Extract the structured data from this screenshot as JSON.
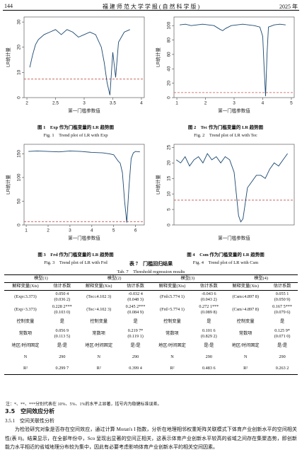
{
  "header": {
    "page": "144",
    "journal": "福 建 师 范 大 学 学 报 ( 自 然 科 学 版 )",
    "year": "2025 年"
  },
  "chart_data": [
    {
      "type": "line",
      "caption": "图 1　Exp 作为门槛变量的 LR 趋势图",
      "caption_en": "Fig. 1　Trend plot of LR with Exp",
      "x_label": "第一门槛参数值",
      "y_label": "LR统计量",
      "x": [
        2.05,
        2.1,
        2.15,
        2.2,
        2.3,
        2.4,
        2.5,
        2.6,
        2.7,
        2.8,
        2.9,
        3.0,
        3.1,
        3.2,
        3.3,
        3.35,
        3.4,
        3.45,
        3.5,
        3.55,
        3.6,
        3.7,
        3.8
      ],
      "series": [
        {
          "color": "#1a476f",
          "values": [
            12,
            17,
            21,
            23,
            25,
            26,
            27,
            25,
            27,
            26,
            24,
            25,
            26,
            25,
            20,
            14,
            6,
            1,
            18,
            8,
            22,
            26,
            27
          ]
        }
      ],
      "threshold": {
        "value": 7.35,
        "color": "#c0504d"
      },
      "xlim": [
        1.95,
        4.05
      ],
      "xticks": [
        2,
        2.5,
        3,
        3.5,
        4
      ],
      "ylim": [
        0,
        32
      ],
      "yticks": [
        0,
        10,
        20,
        30
      ]
    },
    {
      "type": "line",
      "caption": "图 2　Tec 作为门槛变量的 LR 趋势图",
      "caption_en": "Fig. 2　Trend plot of LR with Tec",
      "x_label": "第一门槛参数值",
      "y_label": "LR统计量",
      "x": [
        1.1,
        1.3,
        1.5,
        1.7,
        1.9,
        2.1,
        2.3,
        2.5,
        2.6,
        2.7,
        2.9,
        3.1,
        3.3,
        3.5,
        3.7,
        3.9,
        4.0,
        4.05,
        4.1,
        4.15,
        4.2,
        4.4,
        4.6,
        4.8
      ],
      "series": [
        {
          "color": "#1a476f",
          "values": [
            101,
            102,
            100,
            101,
            102,
            101,
            100,
            95,
            93,
            96,
            100,
            101,
            102,
            101,
            100,
            98,
            85,
            40,
            2,
            60,
            98,
            101,
            102,
            101
          ]
        }
      ],
      "threshold": {
        "value": 7,
        "color": "#c0504d"
      },
      "xlim": [
        0.9,
        5.1
      ],
      "xticks": [
        1,
        2,
        3,
        4,
        5
      ],
      "ylim": [
        0,
        112
      ],
      "yticks": [
        0,
        20,
        40,
        60,
        80,
        100
      ]
    },
    {
      "type": "line",
      "caption": "图 3　Frd 作为门槛变量的 LR 趋势图",
      "caption_en": "Fig. 3　Trend plot of LR with Frd",
      "x_label": "第一门槛参数值",
      "y_label": "LR统计量",
      "x": [
        1.1,
        1.5,
        2,
        2.5,
        3,
        3.5,
        4,
        4.5,
        4.8,
        5,
        5.2,
        5.3,
        5.4,
        5.5,
        5.6,
        5.7,
        5.8,
        5.9,
        6,
        6.2
      ],
      "series": [
        {
          "color": "#1a476f",
          "values": [
            155,
            156,
            155,
            154,
            156,
            155,
            153,
            152,
            150,
            148,
            135,
            130,
            110,
            50,
            5,
            80,
            140,
            152,
            155,
            154
          ]
        }
      ],
      "threshold": {
        "value": 7,
        "color": "#c0504d"
      },
      "xlim": [
        0.9,
        6.4
      ],
      "xticks": [
        1,
        2,
        3,
        4,
        5,
        6
      ],
      "ylim": [
        0,
        170
      ],
      "yticks": [
        0,
        50,
        100,
        150
      ]
    },
    {
      "type": "line",
      "caption": "图 4　Csm 作为门槛变量的 LR 趋势图",
      "caption_en": "Fig. 4　Trend plot of LR with Csm",
      "x_label": "第一门槛参数值",
      "y_label": "LR统计量",
      "x": [
        1,
        1.2,
        1.4,
        1.6,
        1.8,
        2,
        2.2,
        2.4,
        2.6,
        2.8,
        3,
        3.2,
        3.4,
        3.6,
        3.8,
        3.9,
        4,
        4.2,
        4.4,
        4.6,
        4.8,
        5,
        5.2,
        5.4,
        5.6,
        5.8,
        6
      ],
      "series": [
        {
          "color": "#1a476f",
          "values": [
            21,
            20,
            22,
            19,
            21,
            22,
            20,
            23,
            21,
            22,
            20,
            22,
            21,
            17,
            3,
            1,
            2,
            12,
            14,
            16,
            16,
            15,
            18,
            20,
            19,
            21,
            23
          ]
        }
      ],
      "threshold": {
        "value": 8,
        "color": "#c0504d"
      },
      "xlim": [
        0.9,
        6.3
      ],
      "xticks": [],
      "ylim": [
        0,
        26
      ],
      "yticks": [
        0,
        5,
        10,
        15,
        20,
        25
      ]
    }
  ],
  "table": {
    "title": "表 7　门槛回归结果",
    "title_en": "Tab. 7　Threshold regression results",
    "header": [
      "模型(1)",
      "模型(2)",
      "模型(3)",
      "模型(4)"
    ],
    "subheader": [
      "解释变量(Xis)",
      "估计系数",
      "解释变量(Xis)",
      "估计系数",
      "解释变量(Xis)",
      "估计系数",
      "解释变量(Xis)",
      "估计系数"
    ],
    "rows": [
      [
        "(Exp≤3.373)",
        [
          "0.050 4",
          "(0.036 2)"
        ],
        "(Tec≤4.102 3)",
        [
          "-0.032 4",
          "(0.048 3)"
        ],
        "(Frd≤5.774 1)",
        [
          "-0.043 6",
          "(0.043 2)"
        ],
        "(Csm≤4.897 8)",
        [
          "0.055 1",
          "(0.050 9)"
        ]
      ],
      [
        "(Exp>3.373)",
        [
          "0.228 2***",
          "(0.103 0)"
        ],
        "(Tec>4.102 3)",
        [
          "0.245 2***",
          "(0.084 9)"
        ],
        "(Frd>5.774 1)",
        [
          "0.272 1***",
          "(0.089 8)"
        ],
        "(Csm>4.897 8)",
        [
          "0.167 5***",
          "(0.079 6)"
        ]
      ],
      [
        "控制变量",
        "是",
        "控制变量",
        "是",
        "控制变量",
        "是",
        "控制变量",
        "是"
      ],
      [
        "常数项",
        [
          "0.056 9",
          "(0.113 5)"
        ],
        "常数项",
        [
          "0.219 7*",
          "(0.119 1)"
        ],
        "常数项",
        [
          "0.101 6",
          "(0.829 2)"
        ],
        "常数项",
        [
          "0.125 9*",
          "(0.071 0)"
        ]
      ],
      [
        "地区/时间固定",
        "是/是",
        "地区/时间固定",
        "是/是",
        "地区/时间固定",
        "是/是",
        "地区/时间固定",
        "是/是"
      ],
      [
        "N",
        "290",
        "N",
        "290",
        "N",
        "290",
        "N",
        "290"
      ],
      [
        "R²",
        "0.299 7",
        "R²",
        "0.399 4",
        "R²",
        "0.483 6",
        "R²",
        "0.263 2"
      ]
    ],
    "note": "注：*、**、***分别代表在 10%、5%、1%的水平上显著，括号内为稳健标准误差。"
  },
  "section": {
    "heading": "3.5　空间效应分析",
    "subheading": "3.5.1　空间关联性分析",
    "paragraph": "为检验研究对象是否存在空间效应，通过计算 Moran's I 指数，分析在地理相邻权重矩阵关联模式下体育产业创新水平的空间相关性(表 8)。结果显示，在全部年份中，Sco 呈现出显著的空间正相关，这表示体育产业创新水平较高的省域之间存在集聚态势，即创新能力水平相近的省域地理分布较为集中，因此有必要考虑影响体育产业创新水平的相关空间因素。"
  }
}
